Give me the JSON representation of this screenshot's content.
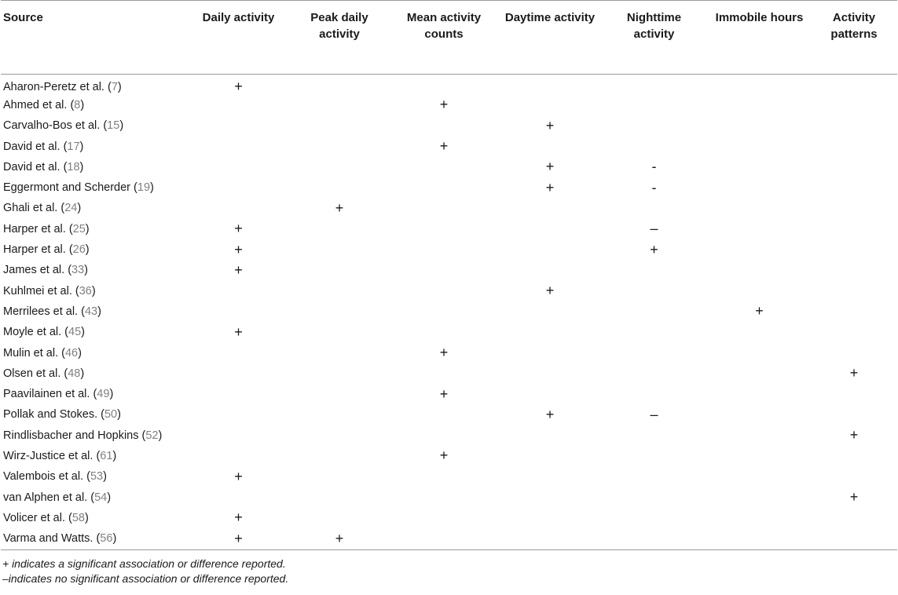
{
  "table": {
    "headers": [
      "Source",
      "Daily activity",
      "Peak daily activity",
      "Mean activity counts",
      "Daytime activity",
      "Nighttime activity",
      "Immobile hours",
      "Activity patterns"
    ],
    "rows": [
      {
        "name": "Aharon-Peretz et al.",
        "ref": "7",
        "cells": [
          "+",
          "",
          "",
          "",
          "",
          "",
          ""
        ]
      },
      {
        "name": "Ahmed et al.",
        "ref": "8",
        "cells": [
          "",
          "",
          "+",
          "",
          "",
          "",
          ""
        ]
      },
      {
        "name": "Carvalho-Bos et al.",
        "ref": "15",
        "cells": [
          "",
          "",
          "",
          "+",
          "",
          "",
          ""
        ]
      },
      {
        "name": "David et al.",
        "ref": "17",
        "cells": [
          "",
          "",
          "+",
          "",
          "",
          "",
          ""
        ]
      },
      {
        "name": "David et al.",
        "ref": "18",
        "cells": [
          "",
          "",
          "",
          "+",
          "-",
          "",
          ""
        ]
      },
      {
        "name": "Eggermont and Scherder",
        "ref": "19",
        "cells": [
          "",
          "",
          "",
          "+",
          "-",
          "",
          ""
        ]
      },
      {
        "name": "Ghali et al.",
        "ref": "24",
        "cells": [
          "",
          "+",
          "",
          "",
          "",
          "",
          ""
        ]
      },
      {
        "name": "Harper et al.",
        "ref": "25",
        "cells": [
          "+",
          "",
          "",
          "",
          "–",
          "",
          ""
        ]
      },
      {
        "name": "Harper et al.",
        "ref": "26",
        "cells": [
          "+",
          "",
          "",
          "",
          "+",
          "",
          ""
        ]
      },
      {
        "name": "James et al.",
        "ref": "33",
        "cells": [
          "+",
          "",
          "",
          "",
          "",
          "",
          ""
        ]
      },
      {
        "name": "Kuhlmei et al.",
        "ref": "36",
        "cells": [
          "",
          "",
          "",
          "+",
          "",
          "",
          ""
        ]
      },
      {
        "name": "Merrilees et al.",
        "ref": "43",
        "cells": [
          "",
          "",
          "",
          "",
          "",
          "+",
          ""
        ]
      },
      {
        "name": "Moyle et al.",
        "ref": "45",
        "cells": [
          "+",
          "",
          "",
          "",
          "",
          "",
          ""
        ]
      },
      {
        "name": "Mulin et al.",
        "ref": "46",
        "cells": [
          "",
          "",
          "+",
          "",
          "",
          "",
          ""
        ]
      },
      {
        "name": "Olsen et al.",
        "ref": "48",
        "cells": [
          "",
          "",
          "",
          "",
          "",
          "",
          "+"
        ]
      },
      {
        "name": "Paavilainen et al.",
        "ref": "49",
        "cells": [
          "",
          "",
          "+",
          "",
          "",
          "",
          ""
        ]
      },
      {
        "name": "Pollak and Stokes.",
        "ref": "50",
        "cells": [
          "",
          "",
          "",
          "+",
          "–",
          "",
          ""
        ]
      },
      {
        "name": "Rindlisbacher and Hopkins",
        "ref": "52",
        "cells": [
          "",
          "",
          "",
          "",
          "",
          "",
          "+"
        ]
      },
      {
        "name": "Wirz-Justice et al.",
        "ref": "61",
        "cells": [
          "",
          "",
          "+",
          "",
          "",
          "",
          ""
        ]
      },
      {
        "name": "Valembois et al.",
        "ref": "53",
        "cells": [
          "+",
          "",
          "",
          "",
          "",
          "",
          ""
        ]
      },
      {
        "name": "van Alphen et al.",
        "ref": "54",
        "cells": [
          "",
          "",
          "",
          "",
          "",
          "",
          "+"
        ]
      },
      {
        "name": "Volicer et al.",
        "ref": "58",
        "cells": [
          "+",
          "",
          "",
          "",
          "",
          "",
          ""
        ]
      },
      {
        "name": "Varma and Watts.",
        "ref": "56",
        "cells": [
          "+",
          "+",
          "",
          "",
          "",
          "",
          ""
        ]
      }
    ]
  },
  "footnotes": [
    "+ indicates a significant association or difference reported.",
    "–indicates no significant association or difference reported."
  ]
}
